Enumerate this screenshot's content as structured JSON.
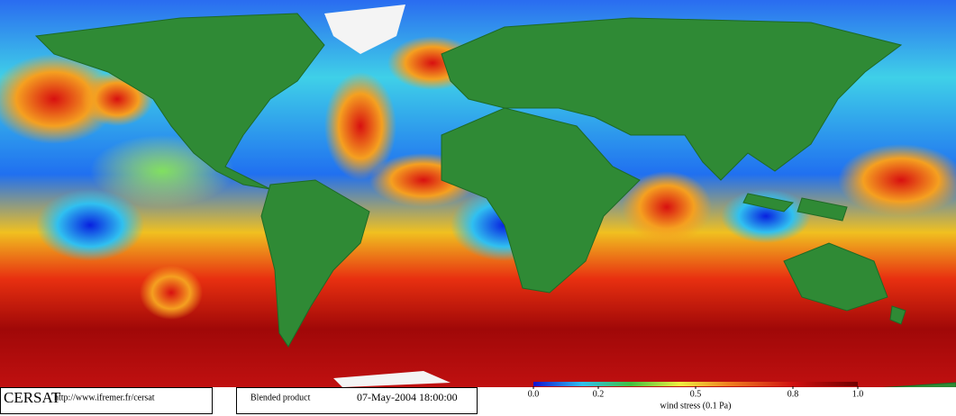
{
  "footer": {
    "brand": "CERSAT",
    "url": "http://www.ifremer.fr/cersat",
    "product": "Blended product",
    "datetime": "07-May-2004 18:00:00"
  },
  "colorbar": {
    "ticks": [
      {
        "value": 0,
        "label": "0.0"
      },
      0.2,
      0.5,
      0.8,
      {
        "value": 1,
        "label": "1.0"
      }
    ],
    "label": "wind stress (0.1 Pa)"
  }
}
